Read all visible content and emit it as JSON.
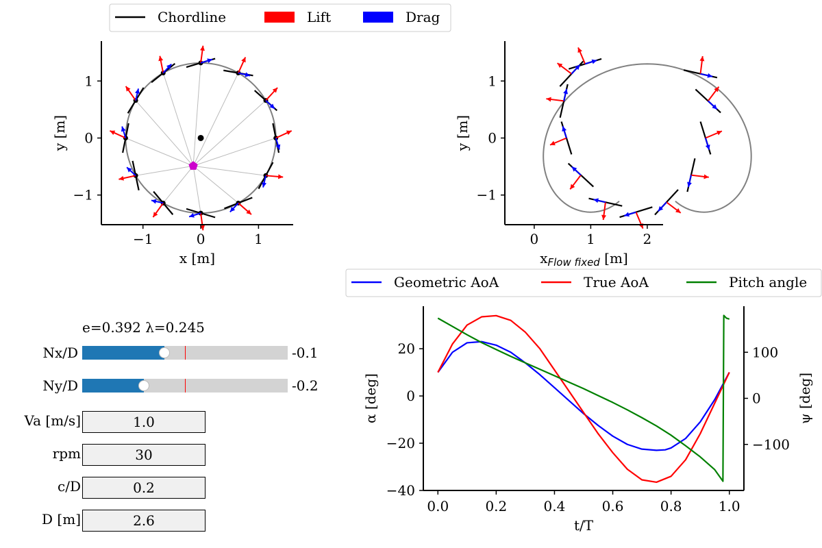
{
  "legend_top": {
    "items": [
      {
        "label": "Chordline",
        "kind": "line",
        "color": "#000000"
      },
      {
        "label": "Lift",
        "kind": "patch",
        "color": "#ff0000"
      },
      {
        "label": "Drag",
        "kind": "patch",
        "color": "#0000ff"
      }
    ]
  },
  "legend_mid": {
    "items": [
      {
        "label": "Geometric AoA",
        "color": "#0000ff"
      },
      {
        "label": "True AoA",
        "color": "#ff0000"
      },
      {
        "label": "Pitch angle",
        "color": "#008000"
      }
    ]
  },
  "controls": {
    "status": "e=0.392 λ=0.245",
    "sliders": [
      {
        "label": "Nx/D",
        "value_text": "-0.1",
        "value": -0.1,
        "min": -0.5,
        "max": 0.5,
        "initial": 0.0
      },
      {
        "label": "Ny/D",
        "value_text": "-0.2",
        "value": -0.2,
        "min": -0.5,
        "max": 0.5,
        "initial": 0.0
      }
    ],
    "textboxes": [
      {
        "label": "Va [m/s]",
        "value": "1.0"
      },
      {
        "label": "rpm",
        "value": "30"
      },
      {
        "label": "c/D",
        "value": "0.2"
      },
      {
        "label": "D [m]",
        "value": "2.6"
      }
    ]
  },
  "chart_data": [
    {
      "type": "scatter",
      "id": "rotor",
      "xlabel": "x [m]",
      "ylabel": "y [m]",
      "xlim": [
        -1.72,
        1.6
      ],
      "ylim": [
        -1.52,
        1.7
      ],
      "xticks": [
        -1,
        0,
        1
      ],
      "yticks": [
        -1,
        0,
        1
      ],
      "radius": 1.3,
      "center": [
        0,
        0
      ],
      "n_blades": 12,
      "pivot_point": [
        -0.13,
        -0.49
      ],
      "circle_color": "#808080",
      "pivot_color": "#cc00cc",
      "chord_length": 0.52,
      "arrow_length": 0.3
    },
    {
      "type": "scatter",
      "id": "flow_fixed",
      "xlabel": "x",
      "xlabel_subscript": "Flow fixed",
      "xlabel_unit": "[m]",
      "ylabel": "y [m]",
      "xlim": [
        -0.52,
        2.28
      ],
      "ylim": [
        -1.52,
        1.7
      ],
      "xticks": [
        0,
        1,
        2
      ],
      "yticks": [
        -1,
        0,
        1
      ],
      "trajectory": "trochoid",
      "lambda": 0.245,
      "x0": -0.1,
      "n_blades": 12,
      "circle_color": "#808080"
    },
    {
      "type": "line",
      "id": "angles",
      "xlabel": "t/T",
      "ylabel": "α [deg]",
      "y2label": "ψ [deg]",
      "xlim": [
        -0.05,
        1.05
      ],
      "ylim": [
        -40,
        38
      ],
      "y2lim": [
        -200,
        200
      ],
      "xticks": [
        0.0,
        0.2,
        0.4,
        0.6,
        0.8,
        1.0
      ],
      "xticklabels": [
        "0.0",
        "0.2",
        "0.4",
        "0.6",
        "0.8",
        "1.0"
      ],
      "yticks": [
        -40,
        -20,
        0,
        20
      ],
      "yticklabels": [
        "−40",
        "−20",
        "0",
        "20"
      ],
      "y2ticks": [
        -100,
        0,
        100
      ],
      "y2ticklabels": [
        "−100",
        "0",
        "100"
      ],
      "series": [
        {
          "name": "Geometric AoA",
          "color": "#0000ff",
          "axis": "left",
          "x": [
            0.0,
            0.05,
            0.1,
            0.15,
            0.2,
            0.25,
            0.3,
            0.35,
            0.4,
            0.45,
            0.5,
            0.55,
            0.6,
            0.65,
            0.7,
            0.75,
            0.78,
            0.8,
            0.85,
            0.9,
            0.95,
            1.0
          ],
          "y": [
            10,
            18.5,
            22.5,
            23,
            21.5,
            18.5,
            14,
            9,
            3.5,
            -2,
            -7.5,
            -12.5,
            -17,
            -20.5,
            -22.5,
            -23,
            -22.8,
            -22,
            -18,
            -11,
            -1.5,
            10
          ]
        },
        {
          "name": "True AoA",
          "color": "#ff0000",
          "axis": "left",
          "x": [
            0.0,
            0.05,
            0.1,
            0.15,
            0.2,
            0.25,
            0.3,
            0.35,
            0.4,
            0.45,
            0.5,
            0.55,
            0.6,
            0.65,
            0.7,
            0.75,
            0.8,
            0.85,
            0.9,
            0.95,
            1.0
          ],
          "y": [
            10,
            22,
            30,
            33.5,
            34,
            32,
            27,
            20,
            11,
            2,
            -7,
            -16,
            -24,
            -31,
            -35.5,
            -36.5,
            -34,
            -27,
            -16,
            -3,
            10
          ]
        },
        {
          "name": "Pitch angle",
          "color": "#008000",
          "axis": "right",
          "x": [
            0.0,
            0.05,
            0.1,
            0.15,
            0.2,
            0.25,
            0.3,
            0.35,
            0.4,
            0.45,
            0.5,
            0.55,
            0.6,
            0.65,
            0.7,
            0.75,
            0.8,
            0.85,
            0.9,
            0.95,
            0.978,
            0.981,
            0.99,
            1.0
          ],
          "y": [
            174,
            156,
            138,
            121,
            106,
            91,
            77,
            63,
            49,
            35,
            21,
            6,
            -9,
            -25,
            -42,
            -60,
            -80,
            -103,
            -127,
            -155,
            -180,
            180,
            174,
            172
          ]
        }
      ]
    }
  ]
}
